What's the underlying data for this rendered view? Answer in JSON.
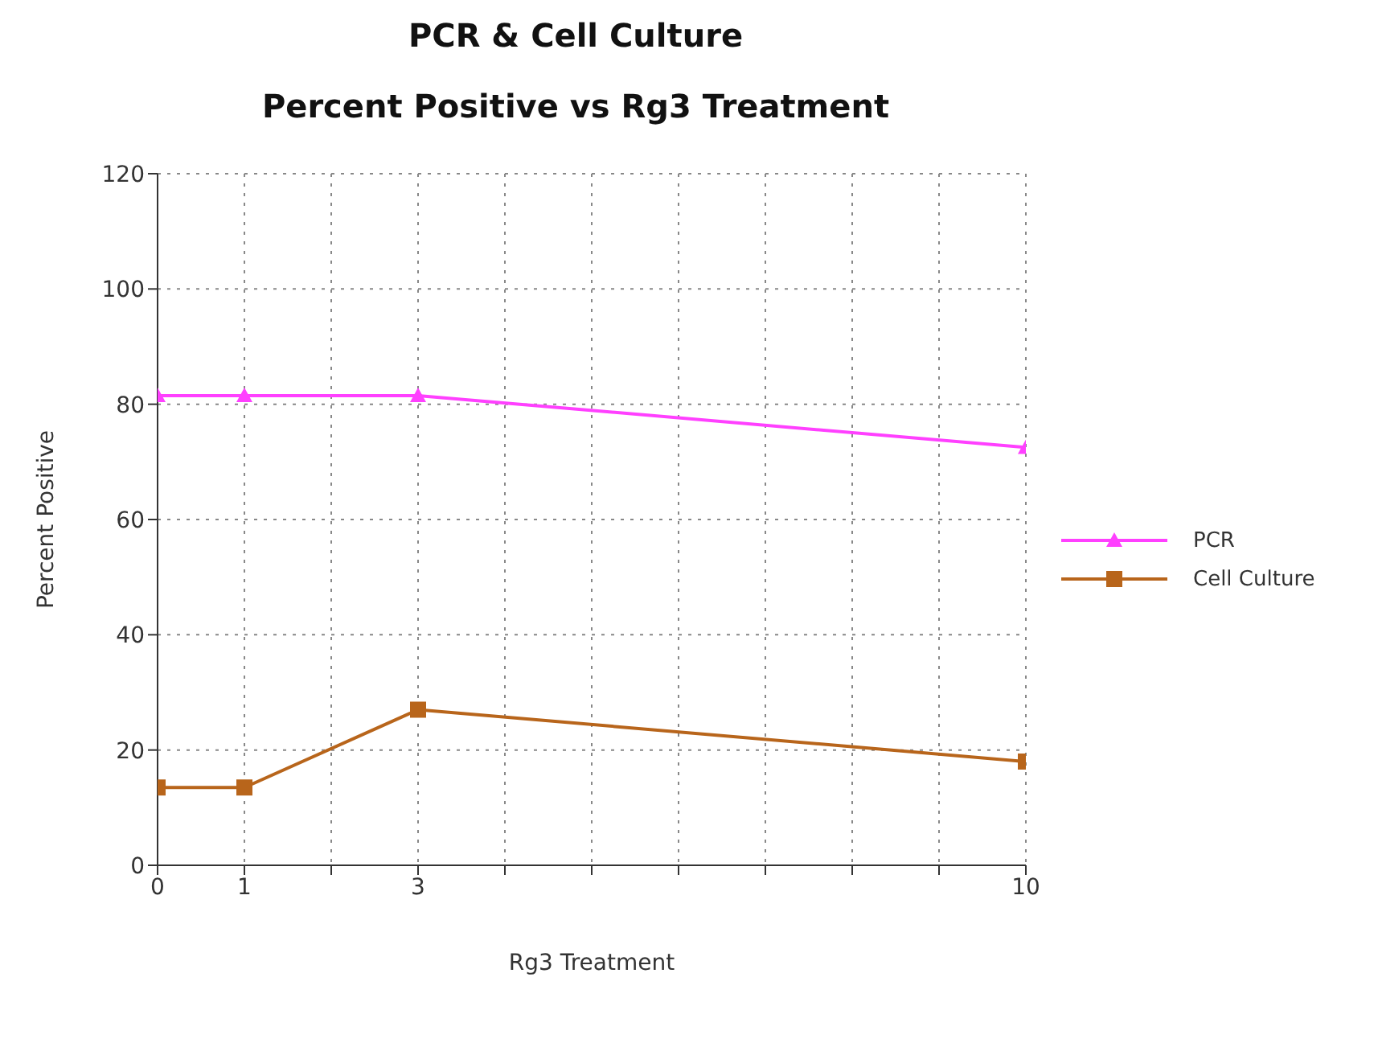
{
  "chart_data": {
    "type": "line",
    "title": "PCR & Cell Culture",
    "subtitle": "Percent Positive vs Rg3 Treatment",
    "xlabel": "Rg3 Treatment",
    "ylabel": "Percent Positive",
    "x": [
      0,
      1,
      3,
      10
    ],
    "series": [
      {
        "name": "PCR",
        "color": "#ff40ff",
        "marker": "triangle",
        "values": [
          81.5,
          81.5,
          81.5,
          72.5
        ]
      },
      {
        "name": "Cell Culture",
        "color": "#b8651b",
        "marker": "square",
        "values": [
          13.5,
          13.5,
          27,
          18
        ]
      }
    ],
    "xlim": [
      0,
      10
    ],
    "xticks": [
      0,
      1,
      {
        "value": 2,
        "label": null
      },
      3,
      {
        "value": 4,
        "label": null
      },
      {
        "value": 5,
        "label": null
      },
      {
        "value": 6,
        "label": null
      },
      {
        "value": 7,
        "label": null
      },
      {
        "value": 8,
        "label": null
      },
      {
        "value": 9,
        "label": null
      },
      10
    ],
    "ylim": [
      0,
      120
    ],
    "yticks": [
      0,
      20,
      40,
      60,
      80,
      100,
      120
    ],
    "grid": true,
    "legend": "right",
    "line_style": "solid"
  }
}
